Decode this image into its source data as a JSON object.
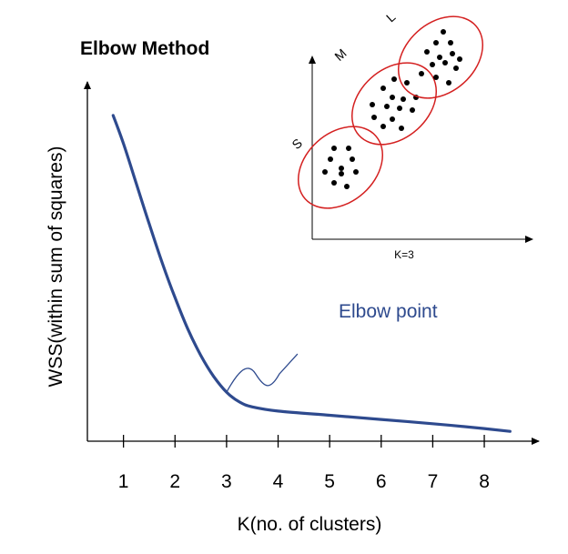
{
  "chart_data": {
    "type": "line",
    "title": "Elbow Method",
    "xlabel": "K(no. of clusters)",
    "ylabel": "WSS(within sum of squares)",
    "categories": [
      "1",
      "2",
      "3",
      "4",
      "5",
      "6",
      "7",
      "8"
    ],
    "xlim": [
      0.3,
      8.9
    ],
    "ylim": [
      0,
      10
    ],
    "grid": false,
    "series": [
      {
        "x": [
          0.8,
          1.0,
          1.25,
          1.5,
          1.75,
          2.0,
          2.25,
          2.5,
          2.75,
          3.0,
          3.25,
          3.5,
          4.0,
          5.0,
          6.0,
          7.0,
          8.0,
          8.5
        ],
        "values": [
          9.3,
          8.5,
          7.35,
          6.2,
          5.1,
          4.1,
          3.2,
          2.45,
          1.85,
          1.4,
          1.12,
          0.98,
          0.86,
          0.74,
          0.62,
          0.5,
          0.36,
          0.28
        ]
      }
    ],
    "annotation": {
      "text": "Elbow point",
      "target": {
        "x": 3.0,
        "y": 1.4
      },
      "color": "#2e4a8e"
    },
    "colors": {
      "line": "#2e4a8e",
      "axis": "#000000",
      "text": "#000000"
    }
  },
  "inset": {
    "caption": "K=3",
    "clusters": [
      {
        "label": "S",
        "points": [
          [
            0.6,
            2.5
          ],
          [
            1.0,
            2.5
          ],
          [
            0.5,
            2.2
          ],
          [
            1.1,
            2.2
          ],
          [
            0.8,
            1.95
          ],
          [
            0.35,
            1.85
          ],
          [
            0.8,
            1.8
          ],
          [
            1.2,
            1.85
          ],
          [
            0.6,
            1.55
          ],
          [
            0.95,
            1.45
          ]
        ]
      },
      {
        "label": "M",
        "points": [
          [
            2.25,
            4.4
          ],
          [
            2.6,
            4.3
          ],
          [
            1.95,
            4.15
          ],
          [
            2.2,
            3.9
          ],
          [
            2.5,
            3.85
          ],
          [
            2.85,
            3.9
          ],
          [
            1.65,
            3.7
          ],
          [
            2.05,
            3.65
          ],
          [
            2.4,
            3.6
          ],
          [
            2.75,
            3.55
          ],
          [
            1.7,
            3.35
          ],
          [
            2.2,
            3.3
          ],
          [
            1.95,
            3.1
          ],
          [
            2.45,
            3.05
          ]
        ]
      },
      {
        "label": "L",
        "points": [
          [
            3.6,
            5.7
          ],
          [
            3.4,
            5.4
          ],
          [
            3.8,
            5.4
          ],
          [
            3.15,
            5.15
          ],
          [
            3.5,
            5.0
          ],
          [
            3.85,
            5.1
          ],
          [
            4.05,
            4.95
          ],
          [
            3.3,
            4.8
          ],
          [
            3.65,
            4.85
          ],
          [
            3.95,
            4.7
          ],
          [
            3.0,
            4.55
          ],
          [
            3.4,
            4.45
          ],
          [
            3.75,
            4.3
          ]
        ]
      }
    ],
    "colors": {
      "ellipse": "#d42020",
      "dot": "#000000"
    }
  }
}
